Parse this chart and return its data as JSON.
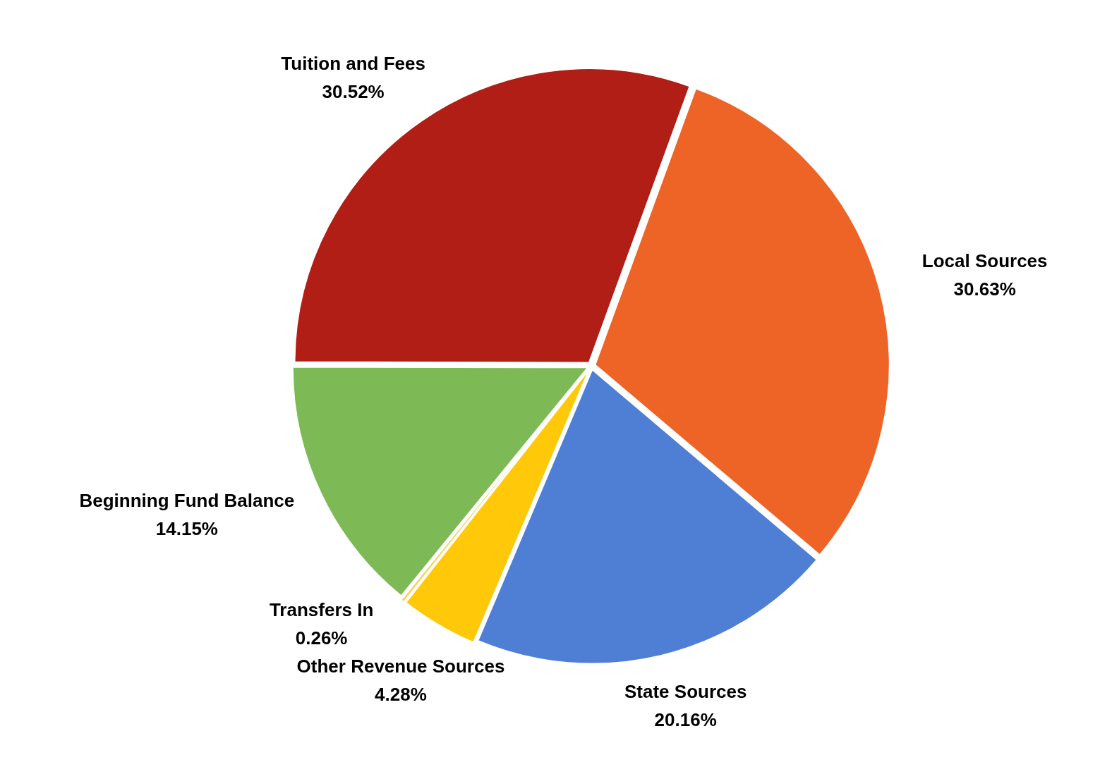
{
  "chart_data": {
    "type": "pie",
    "categories": [
      "Local Sources",
      "State Sources",
      "Other Revenue Sources",
      "Transfers In",
      "Beginning Fund Balance",
      "Tuition and Fees"
    ],
    "values": [
      30.63,
      20.16,
      4.28,
      0.26,
      14.15,
      30.52
    ],
    "value_labels": [
      "30.63%",
      "20.16%",
      "4.28%",
      "0.26%",
      "14.15%",
      "30.52%"
    ],
    "colors": [
      "#ee6426",
      "#4e7fd4",
      "#ffc90a",
      "#f4d66a",
      "#7db955",
      "#b01e15"
    ],
    "legend": false
  }
}
